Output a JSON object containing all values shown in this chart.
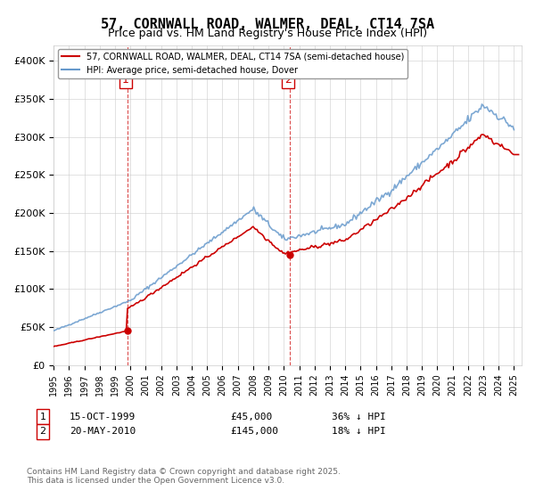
{
  "title": "57, CORNWALL ROAD, WALMER, DEAL, CT14 7SA",
  "subtitle": "Price paid vs. HM Land Registry's House Price Index (HPI)",
  "ylabel_ticks": [
    "£0",
    "£50K",
    "£100K",
    "£150K",
    "£200K",
    "£250K",
    "£300K",
    "£350K",
    "£400K"
  ],
  "ytick_values": [
    0,
    50000,
    100000,
    150000,
    200000,
    250000,
    300000,
    350000,
    400000
  ],
  "ylim": [
    0,
    420000
  ],
  "xlim_start": 1995.0,
  "xlim_end": 2025.5,
  "sale1_date": 1999.79,
  "sale1_price": 45000,
  "sale1_label": "1",
  "sale2_date": 2010.38,
  "sale2_price": 145000,
  "sale2_label": "2",
  "red_line_color": "#cc0000",
  "blue_line_color": "#6699cc",
  "vline_color": "#cc0000",
  "legend_label_red": "57, CORNWALL ROAD, WALMER, DEAL, CT14 7SA (semi-detached house)",
  "legend_label_blue": "HPI: Average price, semi-detached house, Dover",
  "table_row1": "1    15-OCT-1999         £45,000       36% ↓ HPI",
  "table_row2": "2    20-MAY-2010         £145,000      18% ↓ HPI",
  "footer": "Contains HM Land Registry data © Crown copyright and database right 2025.\nThis data is licensed under the Open Government Licence v3.0.",
  "title_fontsize": 11,
  "subtitle_fontsize": 9,
  "bg_color": "#ffffff",
  "grid_color": "#cccccc"
}
